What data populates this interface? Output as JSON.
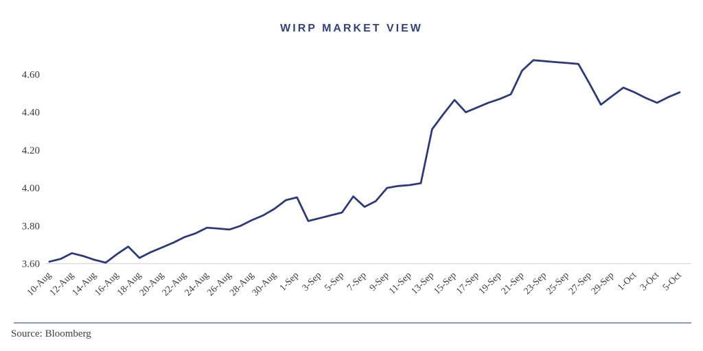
{
  "page": {
    "title": "WIRP MARKET VIEW",
    "source_label": "Source: Bloomberg"
  },
  "chart_data": {
    "type": "line",
    "title": "WIRP MARKET VIEW",
    "source": "Source: Bloomberg",
    "legend": "none",
    "grid": "baseline-only",
    "series_color": "#2b3b79",
    "baseline_color": "#d7d7d7",
    "ylim": [
      3.6,
      4.7
    ],
    "y_ticks": [
      3.6,
      3.8,
      4.0,
      4.2,
      4.4,
      4.6
    ],
    "x": [
      "10-Aug",
      "11-Aug",
      "12-Aug",
      "13-Aug",
      "14-Aug",
      "15-Aug",
      "16-Aug",
      "17-Aug",
      "18-Aug",
      "19-Aug",
      "20-Aug",
      "21-Aug",
      "22-Aug",
      "23-Aug",
      "24-Aug",
      "25-Aug",
      "26-Aug",
      "27-Aug",
      "28-Aug",
      "29-Aug",
      "30-Aug",
      "31-Aug",
      "1-Sep",
      "2-Sep",
      "3-Sep",
      "4-Sep",
      "5-Sep",
      "6-Sep",
      "7-Sep",
      "8-Sep",
      "9-Sep",
      "10-Sep",
      "11-Sep",
      "12-Sep",
      "13-Sep",
      "14-Sep",
      "15-Sep",
      "16-Sep",
      "17-Sep",
      "18-Sep",
      "19-Sep",
      "20-Sep",
      "21-Sep",
      "22-Sep",
      "23-Sep",
      "24-Sep",
      "25-Sep",
      "26-Sep",
      "27-Sep",
      "28-Sep",
      "29-Sep",
      "30-Sep",
      "1-Oct",
      "2-Oct",
      "3-Oct",
      "4-Oct",
      "5-Oct"
    ],
    "values": [
      3.61,
      3.625,
      3.655,
      3.64,
      3.62,
      3.605,
      3.65,
      3.69,
      3.63,
      3.66,
      3.685,
      3.71,
      3.74,
      3.76,
      3.79,
      3.785,
      3.78,
      3.8,
      3.83,
      3.855,
      3.89,
      3.935,
      3.95,
      3.825,
      3.84,
      3.855,
      3.87,
      3.955,
      3.9,
      3.93,
      4.0,
      4.01,
      4.015,
      4.025,
      4.31,
      4.39,
      4.465,
      4.4,
      4.425,
      4.45,
      4.47,
      4.495,
      4.62,
      4.675,
      4.67,
      4.665,
      4.66,
      4.655,
      4.55,
      4.44,
      4.485,
      4.53,
      4.505,
      4.475,
      4.45,
      4.48,
      4.505
    ],
    "x_tick_labels": [
      "10-Aug",
      "12-Aug",
      "14-Aug",
      "16-Aug",
      "18-Aug",
      "20-Aug",
      "22-Aug",
      "24-Aug",
      "26-Aug",
      "28-Aug",
      "30-Aug",
      "1-Sep",
      "3-Sep",
      "5-Sep",
      "7-Sep",
      "9-Sep",
      "11-Sep",
      "13-Sep",
      "15-Sep",
      "17-Sep",
      "19-Sep",
      "21-Sep",
      "23-Sep",
      "25-Sep",
      "27-Sep",
      "29-Sep",
      "1-Oct",
      "3-Oct",
      "5-Oct"
    ]
  }
}
